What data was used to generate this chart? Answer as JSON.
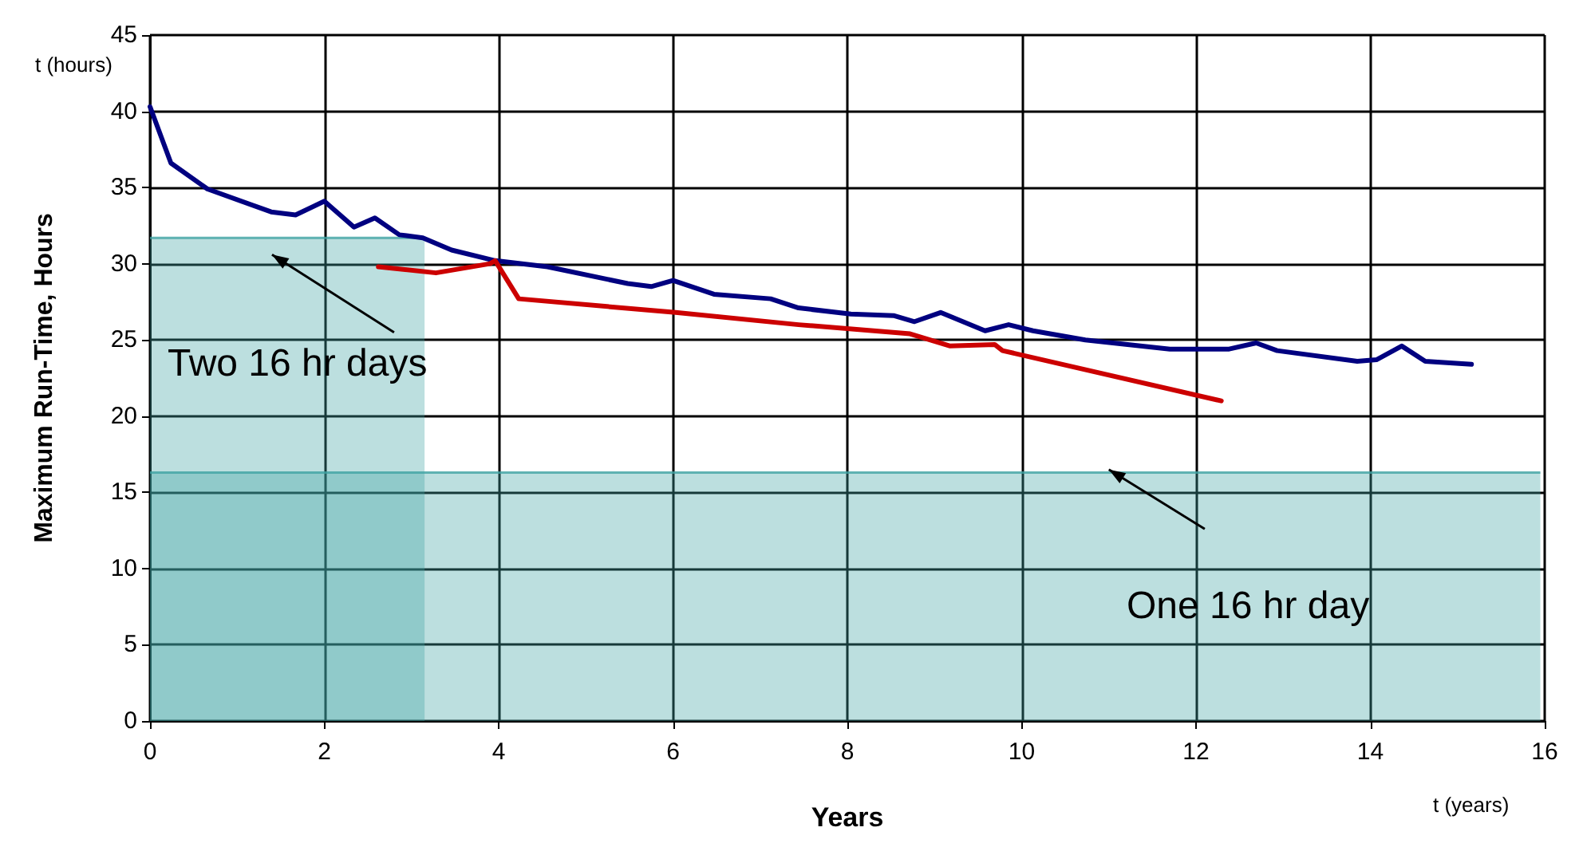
{
  "chart_data": {
    "type": "line",
    "xlabel": "Years",
    "ylabel": "Maximum Run-Time, Hours",
    "annotations": [
      "t (hours)",
      "t (years)",
      "Two 16 hr days",
      "One 16 hr day"
    ],
    "xlim": [
      0,
      16
    ],
    "xticks": [
      0,
      2,
      4,
      6,
      8,
      10,
      12,
      14,
      16
    ],
    "ylim": [
      0,
      45
    ],
    "yticks": [
      0,
      5,
      10,
      15,
      20,
      25,
      30,
      35,
      40,
      45
    ],
    "grid": true,
    "marker": "none",
    "line_style": "solid",
    "series": [
      {
        "type": "area",
        "color": "#3fa3a3",
        "x": [
          0,
          3.15
        ],
        "values": [
          31.7,
          31.7
        ]
      },
      {
        "type": "area",
        "color": "#3fa3a3",
        "x": [
          0,
          15.95
        ],
        "values": [
          16.3,
          16.3
        ]
      },
      {
        "color": "#000080",
        "x": [
          0,
          0.24,
          0.66,
          1.39,
          1.67,
          2.0,
          2.34,
          2.58,
          2.86,
          3.13,
          3.46,
          3.96,
          4.56,
          5.48,
          5.75,
          6.0,
          6.47,
          7.12,
          7.44,
          8.04,
          8.53,
          8.77,
          9.07,
          9.58,
          9.85,
          10.13,
          10.73,
          11.7,
          12.38,
          12.69,
          12.93,
          13.85,
          14.07,
          14.36,
          14.63,
          15.16
        ],
        "values": [
          40.3,
          36.6,
          34.9,
          33.4,
          33.2,
          34.1,
          32.4,
          33.0,
          31.9,
          31.7,
          30.9,
          30.2,
          29.8,
          28.7,
          28.5,
          28.9,
          28.0,
          27.7,
          27.1,
          26.7,
          26.6,
          26.2,
          26.8,
          25.6,
          26.0,
          25.6,
          25.0,
          24.4,
          24.4,
          24.8,
          24.3,
          23.6,
          23.7,
          24.6,
          23.6,
          23.4
        ]
      },
      {
        "color": "#cc0000",
        "x": [
          2.62,
          3.28,
          3.9,
          3.96,
          4.23,
          6.03,
          7.44,
          8.72,
          9.18,
          9.69,
          9.78,
          12.29
        ],
        "values": [
          29.8,
          29.4,
          30.0,
          30.2,
          27.7,
          26.8,
          26.0,
          25.4,
          24.6,
          24.7,
          24.3,
          21.0
        ]
      }
    ]
  }
}
